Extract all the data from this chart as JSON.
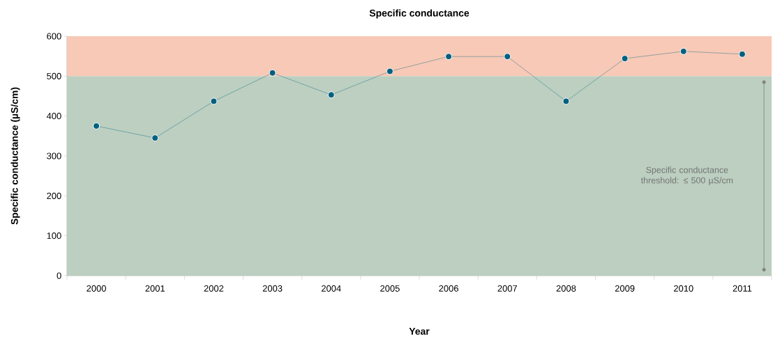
{
  "chart_data": {
    "type": "line",
    "title": "Specific conductance",
    "xlabel": "Year",
    "ylabel": "Specific conductance (µS/cm)",
    "categories": [
      "2000",
      "2001",
      "2002",
      "2003",
      "2004",
      "2005",
      "2006",
      "2007",
      "2008",
      "2009",
      "2010",
      "2011"
    ],
    "series": [
      {
        "color": "#00607f",
        "values": [
          375,
          345,
          437,
          508,
          453,
          512,
          549,
          549,
          437,
          544,
          562,
          555
        ]
      }
    ],
    "ylim": [
      0,
      600
    ],
    "yticks": [
      0,
      100,
      200,
      300,
      400,
      500,
      600
    ],
    "bands": [
      {
        "axis": "y",
        "from": 0,
        "to": 500,
        "label": "Specific conductance threshold: ≤ 500 µS/cm",
        "color": "#bccfc0"
      },
      {
        "axis": "y",
        "from": 500,
        "to": 600,
        "color": "#f7c9b6"
      }
    ],
    "marker": "circle",
    "line_style": "solid",
    "grid": false
  }
}
